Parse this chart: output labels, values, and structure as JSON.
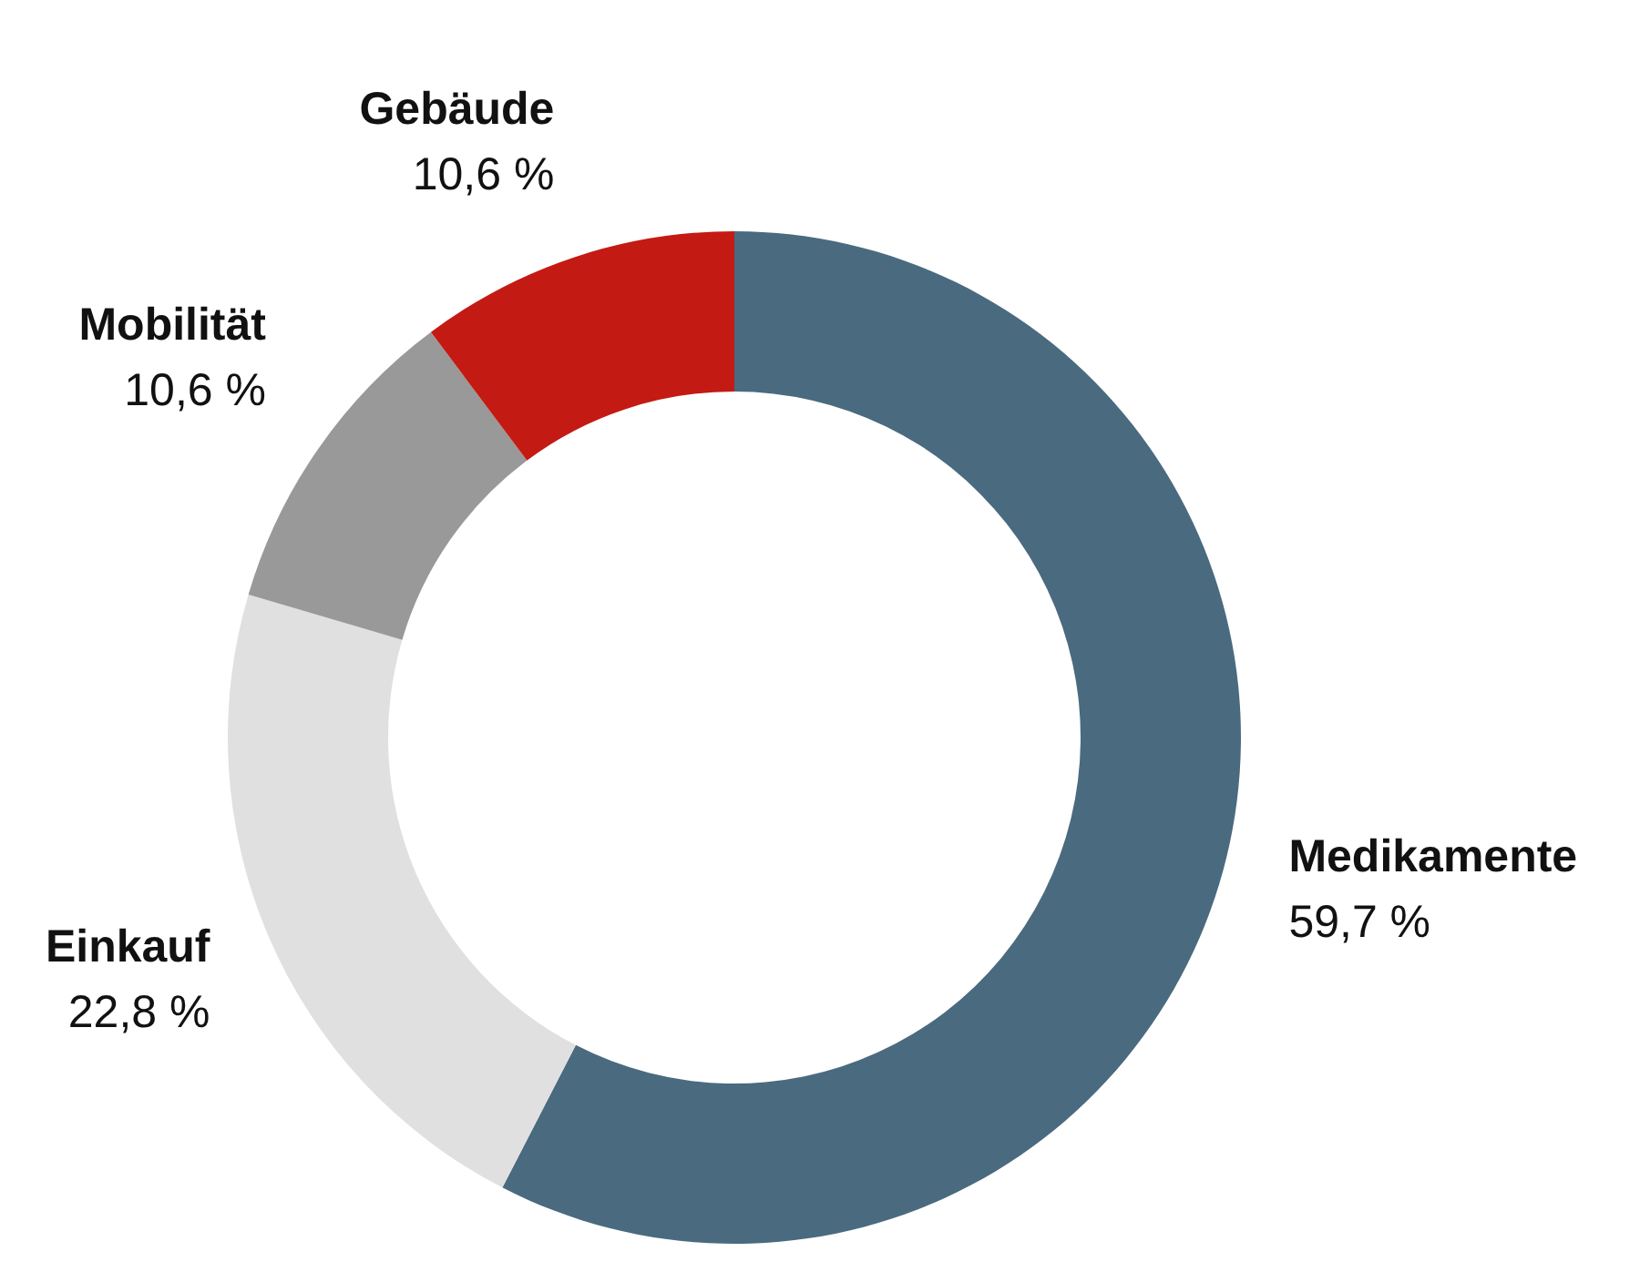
{
  "chart_data": {
    "type": "donut",
    "categories": [
      "Medikamente",
      "Einkauf",
      "Mobilität",
      "Gebäude"
    ],
    "values": [
      59.7,
      22.8,
      10.6,
      10.6
    ],
    "value_labels": [
      "59,7 %",
      "22,8 %",
      "10,6 %",
      "10,6 %"
    ],
    "colors": [
      "#4a6a7f",
      "#e0e0e0",
      "#999999",
      "#c41a14"
    ],
    "legend": false
  }
}
